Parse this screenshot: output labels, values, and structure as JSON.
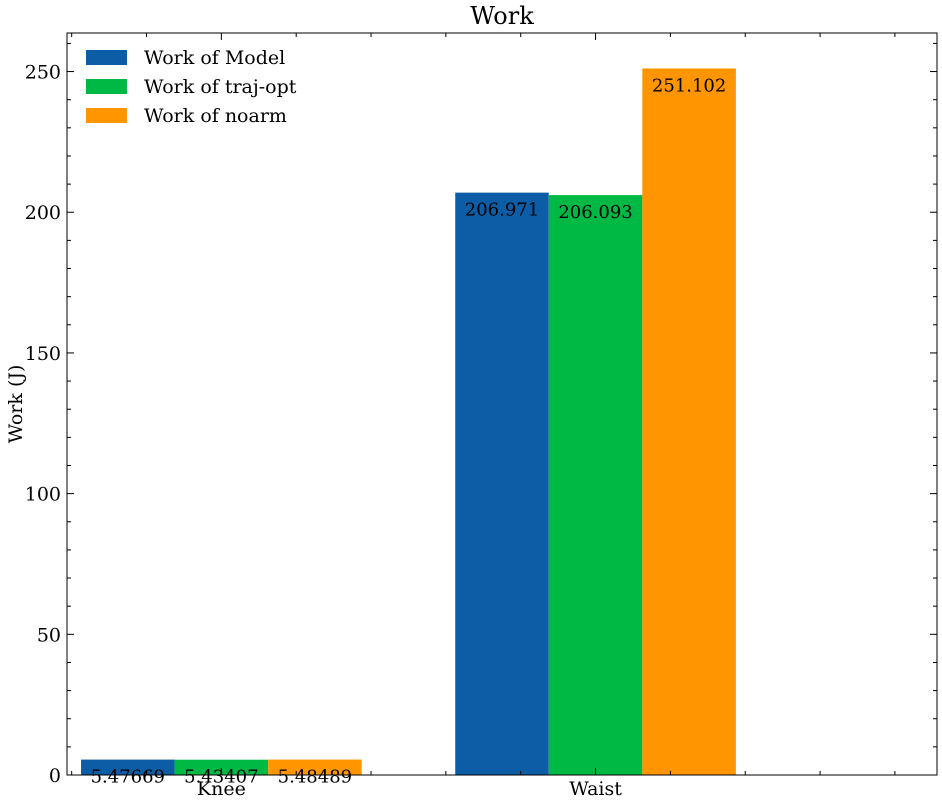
{
  "chart_data": {
    "type": "bar",
    "title": "Work",
    "xlabel": "",
    "ylabel": "Work (J)",
    "categories": [
      "Knee",
      "Waist"
    ],
    "series": [
      {
        "name": "Work of Model",
        "values": [
          5.47669,
          206.971
        ],
        "labels": [
          "5.47669",
          "206.971"
        ],
        "color": "#0c5da5"
      },
      {
        "name": "Work of traj-opt",
        "values": [
          5.43407,
          206.093
        ],
        "labels": [
          "5.43407",
          "206.093"
        ],
        "color": "#00b945"
      },
      {
        "name": "Work of noarm",
        "values": [
          5.48489,
          251.102
        ],
        "labels": [
          "5.48489",
          "251.102"
        ],
        "color": "#ff9500"
      }
    ],
    "ylim": [
      0,
      263.7
    ],
    "yticks": [
      0,
      50,
      100,
      150,
      200,
      250
    ],
    "yticks_minor_step": 10,
    "legend": "top-left",
    "grid": false
  }
}
